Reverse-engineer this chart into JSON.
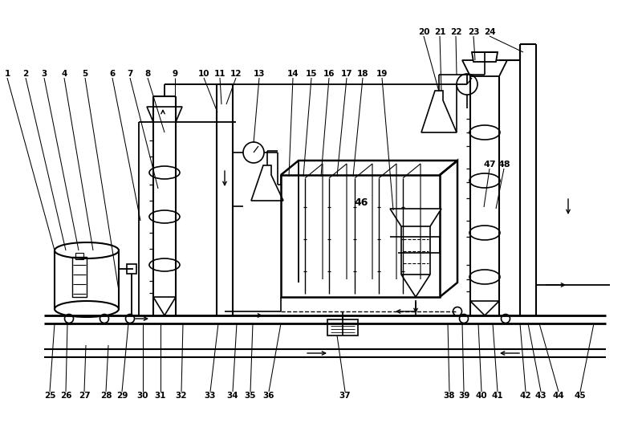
{
  "bg_color": "#ffffff",
  "fig_width": 8.0,
  "fig_height": 5.27,
  "dpi": 100,
  "lw_main": 1.5,
  "lw_thin": 1.0,
  "lw_pipe": 1.2
}
